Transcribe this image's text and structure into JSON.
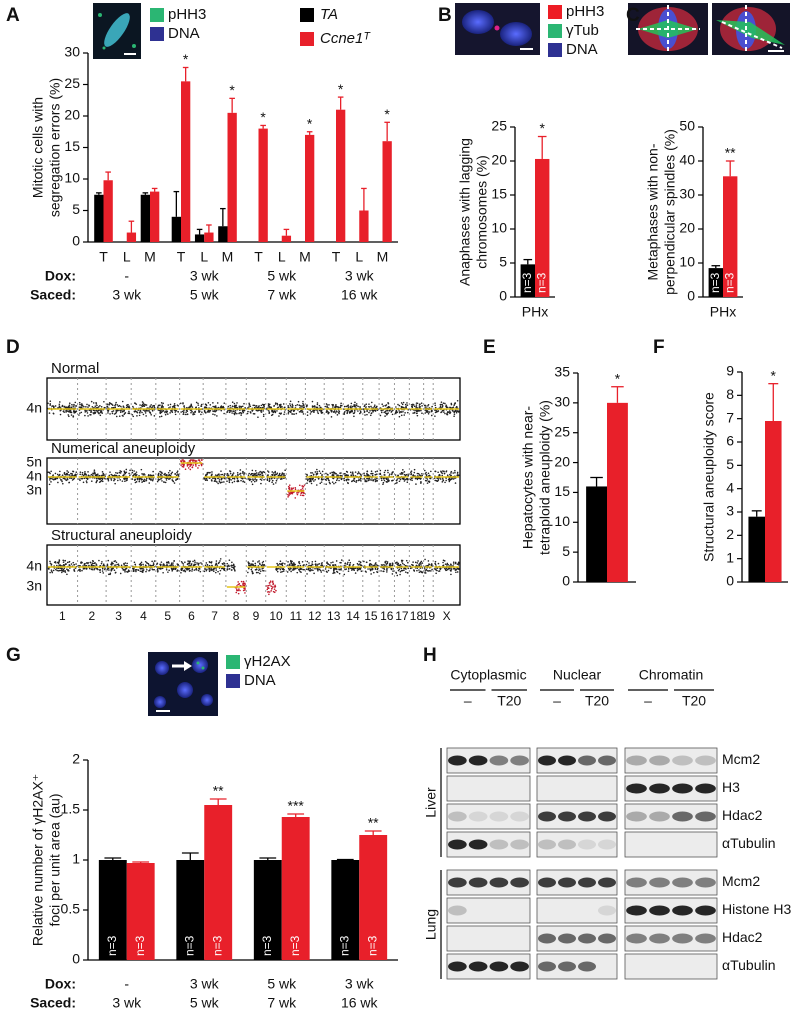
{
  "panels": [
    "A",
    "B",
    "C",
    "D",
    "E",
    "F",
    "G",
    "H"
  ],
  "chart_data": [
    {
      "type": "bar",
      "ylabel": [
        "Mitotic cells with",
        "segregation errors (%)"
      ],
      "categories": [
        "T",
        "L",
        "M",
        "T",
        "L",
        "M",
        "T",
        "L",
        "M",
        "T",
        "L",
        "M"
      ],
      "group_rows": [
        {
          "label": "Dox:",
          "values": [
            "-",
            "3 wk",
            "5 wk",
            "3 wk"
          ]
        },
        {
          "label": "Saced:",
          "values": [
            "3 wk",
            "5 wk",
            "7 wk",
            "16 wk"
          ]
        }
      ],
      "series": [
        {
          "name": "TA",
          "color": "#000000",
          "values": [
            7.5,
            null,
            7.5,
            4,
            1.2,
            2.5,
            null,
            null,
            null,
            null,
            null,
            null
          ],
          "errors": [
            0.3,
            null,
            0.3,
            4,
            0.8,
            2.8,
            null,
            null,
            null,
            null,
            null,
            null
          ]
        },
        {
          "name": "Ccne1ᵀ",
          "color": "#e8202a",
          "values": [
            9.8,
            1.5,
            8,
            25.5,
            1.5,
            20.5,
            18,
            1,
            17,
            21,
            5,
            16
          ],
          "errors": [
            1.3,
            1.8,
            0.5,
            2.2,
            1.2,
            2.3,
            0.5,
            1,
            0.5,
            2,
            3.5,
            3
          ],
          "significance": [
            null,
            null,
            null,
            "*",
            null,
            "*",
            "*",
            null,
            "*",
            "*",
            null,
            "*"
          ]
        }
      ],
      "ylim": [
        0,
        30
      ],
      "yticks": [
        0,
        5,
        10,
        15,
        20,
        25,
        30
      ],
      "image_legend": [
        {
          "name": "pHH3",
          "color": "#2bb673"
        },
        {
          "name": "DNA",
          "color": "#2e3192"
        }
      ]
    },
    {
      "type": "bar",
      "ylabel": [
        "Anaphases with lagging",
        "chromosomes (%)"
      ],
      "categories": [
        "PHx"
      ],
      "series": [
        {
          "color": "#000000",
          "values": [
            4.8
          ],
          "errors": [
            0.7
          ],
          "bar_labels": [
            "n=3"
          ]
        },
        {
          "color": "#e8202a",
          "values": [
            20.3
          ],
          "errors": [
            3.3
          ],
          "bar_labels": [
            "n=3"
          ],
          "significance": [
            "*"
          ]
        }
      ],
      "ylim": [
        0,
        25
      ],
      "yticks": [
        0,
        5,
        10,
        15,
        20,
        25
      ],
      "image_legend": [
        {
          "name": "pHH3",
          "color": "#ed1c24"
        },
        {
          "name": "γTub",
          "color": "#2bb673"
        },
        {
          "name": "DNA",
          "color": "#2e3192"
        }
      ]
    },
    {
      "type": "bar",
      "ylabel": [
        "Metaphases with non-",
        "perpendicular spindles (%)"
      ],
      "categories": [
        "PHx"
      ],
      "series": [
        {
          "color": "#000000",
          "values": [
            8.5
          ],
          "errors": [
            0.7
          ],
          "bar_labels": [
            "n=3"
          ]
        },
        {
          "color": "#e8202a",
          "values": [
            35.5
          ],
          "errors": [
            4.5
          ],
          "bar_labels": [
            "n=3"
          ],
          "significance": [
            "**"
          ]
        }
      ],
      "ylim": [
        0,
        50
      ],
      "yticks": [
        0,
        10,
        20,
        30,
        40,
        50
      ]
    },
    {
      "type": "bar",
      "ylabel": [
        "Hepatocytes with near-",
        "tetraploid aneuploidy (%)"
      ],
      "series": [
        {
          "color": "#000000",
          "values": [
            16
          ],
          "errors": [
            1.5
          ]
        },
        {
          "color": "#e8202a",
          "values": [
            30
          ],
          "errors": [
            2.7
          ],
          "significance": [
            "*"
          ]
        }
      ],
      "ylim": [
        0,
        35
      ],
      "yticks": [
        0,
        5,
        10,
        15,
        20,
        25,
        30,
        35
      ]
    },
    {
      "type": "bar",
      "ylabel": [
        "Structural aneuploidy score"
      ],
      "series": [
        {
          "color": "#000000",
          "values": [
            2.8
          ],
          "errors": [
            0.25
          ]
        },
        {
          "color": "#e8202a",
          "values": [
            6.9
          ],
          "errors": [
            1.6
          ],
          "significance": [
            "*"
          ]
        }
      ],
      "ylim": [
        0,
        9
      ],
      "yticks": [
        0,
        1,
        2,
        3,
        4,
        5,
        6,
        7,
        8,
        9
      ]
    },
    {
      "type": "bar",
      "ylabel": [
        "Relative number of γH2AX⁺",
        "foci per unit area (au)"
      ],
      "group_rows": [
        {
          "label": "Dox:",
          "values": [
            "-",
            "3 wk",
            "5 wk",
            "3 wk"
          ]
        },
        {
          "label": "Saced:",
          "values": [
            "3 wk",
            "5 wk",
            "7 wk",
            "16 wk"
          ]
        }
      ],
      "series": [
        {
          "color": "#000000",
          "values": [
            1.0,
            1.0,
            1.0,
            1.0
          ],
          "errors": [
            0.02,
            0.07,
            0.02,
            0.005
          ],
          "bar_labels": [
            "n=3",
            "n=3",
            "n=3",
            "n=3"
          ]
        },
        {
          "color": "#e8202a",
          "values": [
            0.97,
            1.55,
            1.43,
            1.25
          ],
          "errors": [
            0.01,
            0.06,
            0.03,
            0.04
          ],
          "bar_labels": [
            "n=3",
            "n=3",
            "n=3",
            "n=3"
          ],
          "significance": [
            null,
            "**",
            "***",
            "**"
          ]
        }
      ],
      "ylim": [
        0,
        2
      ],
      "yticks": [
        0,
        0.5,
        1,
        1.5,
        2
      ],
      "image_legend": [
        {
          "name": "γH2AX",
          "color": "#2bb673"
        },
        {
          "name": "DNA",
          "color": "#2e3192"
        }
      ]
    }
  ],
  "karyotype": {
    "sections": [
      {
        "title": "Normal",
        "levels": [
          "4n"
        ]
      },
      {
        "title": "Numerical aneuploidy",
        "levels": [
          "5n",
          "4n",
          "3n"
        ]
      },
      {
        "title": "Structural aneuploidy",
        "levels": [
          "4n",
          "3n"
        ]
      }
    ],
    "chromosomes": [
      "1",
      "2",
      "3",
      "4",
      "5",
      "6",
      "7",
      "8",
      "9",
      "10",
      "11",
      "12",
      "13",
      "14",
      "15",
      "16",
      "17",
      "18",
      "19",
      "X"
    ]
  },
  "blot": {
    "fractions": [
      "Cytoplasmic",
      "Nuclear",
      "Chromatin"
    ],
    "treatments": [
      "–",
      "T20"
    ],
    "tissues": [
      {
        "name": "Liver",
        "proteins": [
          "Mcm2",
          "H3",
          "Hdac2",
          "αTubulin"
        ]
      },
      {
        "name": "Lung",
        "proteins": [
          "Mcm2",
          "Histone H3",
          "Hdac2",
          "αTubulin"
        ]
      }
    ]
  }
}
